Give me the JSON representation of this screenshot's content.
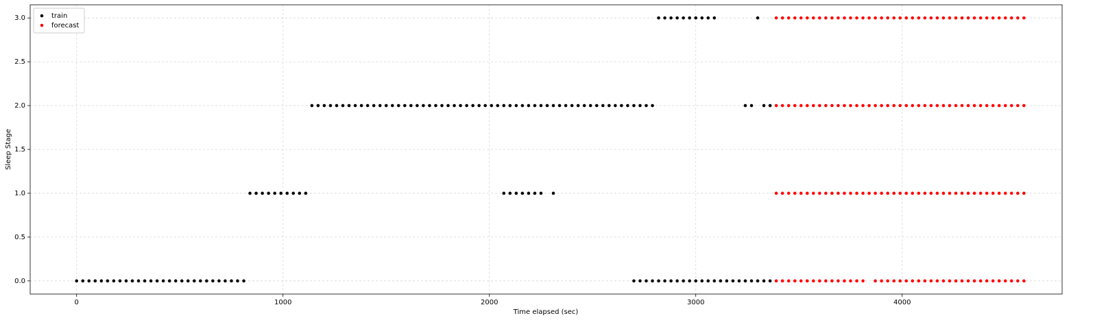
{
  "chart_data": {
    "type": "scatter",
    "xlabel": "Time elapsed (sec)",
    "ylabel": "Sleep Stage",
    "xlim": [
      -225,
      4775
    ],
    "ylim": [
      -0.15,
      3.15
    ],
    "xticks": [
      0,
      1000,
      2000,
      3000,
      4000
    ],
    "yticks": [
      {
        "value": 0,
        "label": "0.0"
      },
      {
        "value": 0.5,
        "label": "0.5"
      },
      {
        "value": 1,
        "label": "1.0"
      },
      {
        "value": 1.5,
        "label": "1.5"
      },
      {
        "value": 2,
        "label": "2.0"
      },
      {
        "value": 2.5,
        "label": "2.5"
      },
      {
        "value": 3,
        "label": "3.0"
      }
    ],
    "grid": true,
    "legend": "upper left",
    "series": [
      {
        "name": "train",
        "color": "#000000",
        "x": [
          0,
          30,
          60,
          90,
          120,
          150,
          180,
          210,
          240,
          270,
          300,
          330,
          360,
          390,
          420,
          450,
          480,
          510,
          540,
          570,
          600,
          630,
          660,
          690,
          720,
          750,
          780,
          810,
          840,
          870,
          900,
          930,
          960,
          990,
          1020,
          1050,
          1080,
          1110,
          1140,
          1170,
          1200,
          1230,
          1260,
          1290,
          1320,
          1350,
          1380,
          1410,
          1440,
          1470,
          1500,
          1530,
          1560,
          1590,
          1620,
          1650,
          1680,
          1710,
          1740,
          1770,
          1800,
          1830,
          1860,
          1890,
          1920,
          1950,
          1980,
          2010,
          2040,
          2070,
          2100,
          2130,
          2160,
          2190,
          2220,
          2250,
          2280,
          2310,
          2340,
          2370,
          2400,
          2430,
          2460,
          2490,
          2520,
          2550,
          2580,
          2610,
          2640,
          2670,
          2700,
          2730,
          2760,
          2790,
          2070,
          2100,
          2130,
          2160,
          2190,
          2220,
          2250,
          2310,
          2820,
          2850,
          2880,
          2910,
          2940,
          2970,
          3000,
          3030,
          3060,
          3090,
          2700,
          2730,
          2760,
          2790,
          2820,
          2850,
          2880,
          2910,
          2940,
          2970,
          3000,
          3030,
          3060,
          3090,
          3120,
          3150,
          3180,
          3210,
          3240,
          3270,
          3300,
          3330,
          3360,
          3240,
          3270,
          3330,
          3360,
          3300
        ],
        "values": [
          0,
          0,
          0,
          0,
          0,
          0,
          0,
          0,
          0,
          0,
          0,
          0,
          0,
          0,
          0,
          0,
          0,
          0,
          0,
          0,
          0,
          0,
          0,
          0,
          0,
          0,
          0,
          0,
          1,
          1,
          1,
          1,
          1,
          1,
          1,
          1,
          1,
          1,
          2,
          2,
          2,
          2,
          2,
          2,
          2,
          2,
          2,
          2,
          2,
          2,
          2,
          2,
          2,
          2,
          2,
          2,
          2,
          2,
          2,
          2,
          2,
          2,
          2,
          2,
          2,
          2,
          2,
          2,
          2,
          2,
          2,
          2,
          2,
          2,
          2,
          2,
          2,
          2,
          2,
          2,
          2,
          2,
          2,
          2,
          2,
          2,
          2,
          2,
          2,
          2,
          2,
          2,
          2,
          2,
          1,
          1,
          1,
          1,
          1,
          1,
          1,
          1,
          3,
          3,
          3,
          3,
          3,
          3,
          3,
          3,
          3,
          3,
          0,
          0,
          0,
          0,
          0,
          0,
          0,
          0,
          0,
          0,
          0,
          0,
          0,
          0,
          0,
          0,
          0,
          0,
          0,
          0,
          0,
          0,
          0,
          2,
          2,
          2,
          2,
          3
        ]
      },
      {
        "name": "forecast",
        "color": "#ff0000",
        "x": [
          3390,
          3420,
          3450,
          3480,
          3510,
          3540,
          3570,
          3600,
          3630,
          3660,
          3690,
          3720,
          3750,
          3780,
          3810,
          3840,
          3870,
          3900,
          3930,
          3960,
          3990,
          4020,
          4050,
          4080,
          4110,
          4140,
          4170,
          4200,
          4230,
          4260,
          4290,
          4320,
          4350,
          4380,
          4410,
          4440,
          4470,
          4500,
          4530,
          4560,
          4590,
          3390,
          3420,
          3450,
          3480,
          3510,
          3540,
          3570,
          3600,
          3630,
          3660,
          3690,
          3720,
          3750,
          3780,
          3810,
          3840,
          3870,
          3900,
          3930,
          3960,
          3990,
          4020,
          4050,
          4080,
          4110,
          4140,
          4170,
          4200,
          4230,
          4260,
          4290,
          4320,
          4350,
          4380,
          4410,
          4440,
          4470,
          4500,
          4530,
          4560,
          4590,
          3390,
          3420,
          3450,
          3480,
          3510,
          3540,
          3570,
          3600,
          3630,
          3660,
          3690,
          3720,
          3750,
          3780,
          3810,
          3840,
          3870,
          3900,
          3930,
          3960,
          3990,
          4020,
          4050,
          4080,
          4110,
          4140,
          4170,
          4200,
          4230,
          4260,
          4290,
          4320,
          4350,
          4380,
          4410,
          4440,
          4470,
          4500,
          4530,
          4560,
          4590,
          3390,
          3420,
          3450,
          3480,
          3510,
          3540,
          3570,
          3600,
          3630,
          3660,
          3690,
          3720,
          3750,
          3780,
          3810,
          3870,
          3900,
          3930,
          3960,
          3990,
          4020,
          4050,
          4080,
          4110,
          4140,
          4170,
          4200,
          4230,
          4260,
          4290,
          4320,
          4350,
          4380,
          4410,
          4440,
          4470,
          4500,
          4530,
          4560,
          4590
        ],
        "values": [
          3,
          3,
          3,
          3,
          3,
          3,
          3,
          3,
          3,
          3,
          3,
          3,
          3,
          3,
          3,
          3,
          3,
          3,
          3,
          3,
          3,
          3,
          3,
          3,
          3,
          3,
          3,
          3,
          3,
          3,
          3,
          3,
          3,
          3,
          3,
          3,
          3,
          3,
          3,
          3,
          3,
          2,
          2,
          2,
          2,
          2,
          2,
          2,
          2,
          2,
          2,
          2,
          2,
          2,
          2,
          2,
          2,
          2,
          2,
          2,
          2,
          2,
          2,
          2,
          2,
          2,
          2,
          2,
          2,
          2,
          2,
          2,
          2,
          2,
          2,
          2,
          2,
          2,
          2,
          2,
          2,
          2,
          1,
          1,
          1,
          1,
          1,
          1,
          1,
          1,
          1,
          1,
          1,
          1,
          1,
          1,
          1,
          1,
          1,
          1,
          1,
          1,
          1,
          1,
          1,
          1,
          1,
          1,
          1,
          1,
          1,
          1,
          1,
          1,
          1,
          1,
          1,
          1,
          1,
          1,
          1,
          1,
          1,
          0,
          0,
          0,
          0,
          0,
          0,
          0,
          0,
          0,
          0,
          0,
          0,
          0,
          0,
          0,
          0,
          0,
          0,
          0,
          0,
          0,
          0,
          0,
          0,
          0,
          0,
          0,
          0,
          0,
          0,
          0,
          0,
          0,
          0,
          0,
          0,
          0,
          0,
          0,
          0
        ]
      }
    ]
  }
}
